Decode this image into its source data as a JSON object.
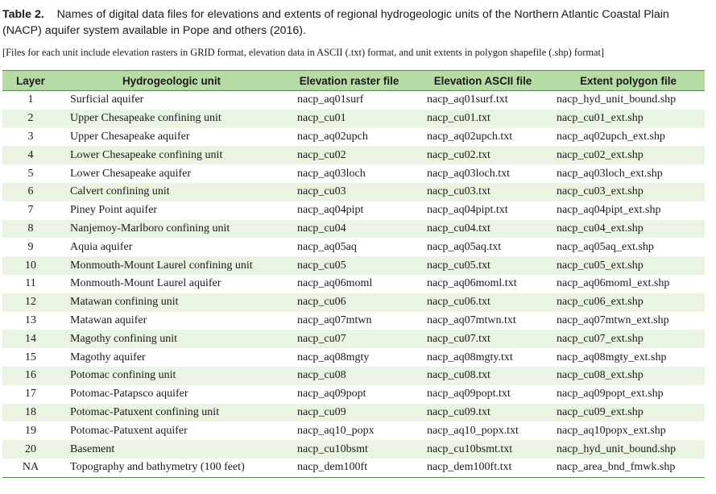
{
  "caption": {
    "label": "Table 2.",
    "text": "Names of digital data files for elevations and extents of regional hydrogeologic units of the Northern Atlantic Coastal Plain (NACP) aquifer system available in Pope and others (2016)."
  },
  "note": "[Files for each unit include elevation rasters in GRID format, elevation data in ASCII (.txt) format, and unit extents in polygon shapefile (.shp) format]",
  "columns": [
    "Layer",
    "Hydrogeologic unit",
    "Elevation raster file",
    "Elevation ASCII file",
    "Extent polygon file"
  ],
  "rows": [
    [
      "1",
      "Surficial aquifer",
      "nacp_aq01surf",
      "nacp_aq01surf.txt",
      "nacp_hyd_unit_bound.shp"
    ],
    [
      "2",
      "Upper Chesapeake confining unit",
      "nacp_cu01",
      "nacp_cu01.txt",
      "nacp_cu01_ext.shp"
    ],
    [
      "3",
      "Upper Chesapeake aquifer",
      "nacp_aq02upch",
      "nacp_aq02upch.txt",
      "nacp_aq02upch_ext.shp"
    ],
    [
      "4",
      "Lower Chesapeake confining unit",
      "nacp_cu02",
      "nacp_cu02.txt",
      "nacp_cu02_ext.shp"
    ],
    [
      "5",
      "Lower Chesapeake aquifer",
      "nacp_aq03loch",
      "nacp_aq03loch.txt",
      "nacp_aq03loch_ext.shp"
    ],
    [
      "6",
      "Calvert confining unit",
      "nacp_cu03",
      "nacp_cu03.txt",
      "nacp_cu03_ext.shp"
    ],
    [
      "7",
      "Piney Point aquifer",
      "nacp_aq04pipt",
      "nacp_aq04pipt.txt",
      "nacp_aq04pipt_ext.shp"
    ],
    [
      "8",
      "Nanjemoy-Marlboro confining unit",
      "nacp_cu04",
      "nacp_cu04.txt",
      "nacp_cu04_ext.shp"
    ],
    [
      "9",
      "Aquia aquifer",
      "nacp_aq05aq",
      "nacp_aq05aq.txt",
      "nacp_aq05aq_ext.shp"
    ],
    [
      "10",
      "Monmouth-Mount Laurel confining unit",
      "nacp_cu05",
      "nacp_cu05.txt",
      "nacp_cu05_ext.shp"
    ],
    [
      "11",
      "Monmouth-Mount Laurel aquifer",
      "nacp_aq06moml",
      "nacp_aq06moml.txt",
      "nacp_aq06moml_ext.shp"
    ],
    [
      "12",
      "Matawan confining unit",
      "nacp_cu06",
      "nacp_cu06.txt",
      "nacp_cu06_ext.shp"
    ],
    [
      "13",
      "Matawan aquifer",
      "nacp_aq07mtwn",
      "nacp_aq07mtwn.txt",
      "nacp_aq07mtwn_ext.shp"
    ],
    [
      "14",
      "Magothy confining unit",
      "nacp_cu07",
      "nacp_cu07.txt",
      "nacp_cu07_ext.shp"
    ],
    [
      "15",
      "Magothy aquifer",
      "nacp_aq08mgty",
      "nacp_aq08mgty.txt",
      "nacp_aq08mgty_ext.shp"
    ],
    [
      "16",
      "Potomac confining unit",
      "nacp_cu08",
      "nacp_cu08.txt",
      "nacp_cu08_ext.shp"
    ],
    [
      "17",
      "Potomac-Patapsco aquifer",
      "nacp_aq09popt",
      "nacp_aq09popt.txt",
      "nacp_aq09popt_ext.shp"
    ],
    [
      "18",
      "Potomac-Patuxent confining unit",
      "nacp_cu09",
      "nacp_cu09.txt",
      "nacp_cu09_ext.shp"
    ],
    [
      "19",
      "Potomac-Patuxent aquifer",
      "nacp_aq10_popx",
      "nacp_aq10_popx.txt",
      "nacp_aq10popx_ext.shp"
    ],
    [
      "20",
      "Basement",
      "nacp_cu10bsmt",
      "nacp_cu10bsmt.txt",
      "nacp_hyd_unit_bound.shp"
    ],
    [
      "NA",
      "Topography and bathymetry (100 feet)",
      "nacp_dem100ft",
      "nacp_dem100ft.txt",
      "nacp_area_bnd_fmwk.shp"
    ]
  ]
}
